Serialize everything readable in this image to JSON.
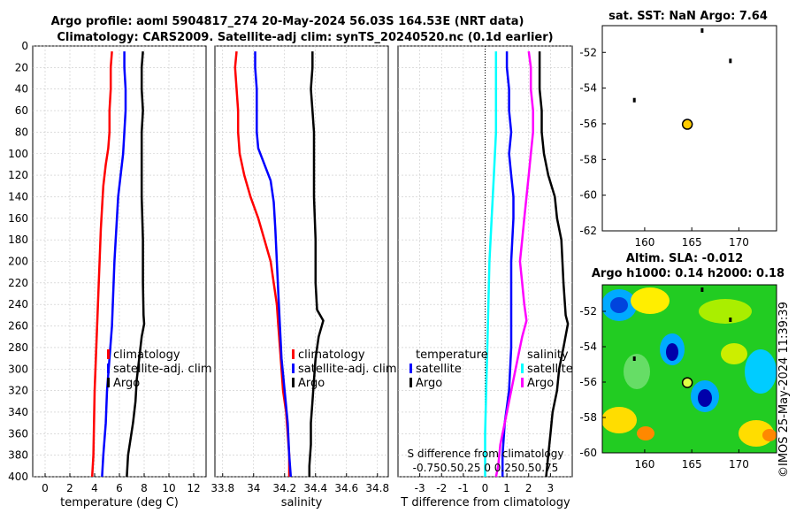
{
  "chart_data": [
    {
      "type": "line",
      "panel": "temperature",
      "title_line1": "Argo profile: aoml 5904817_274 20-May-2024 56.03S 164.53E (NRT data)",
      "title_line2": "Climatology: CARS2009. Satellite-adj clim: synTS_20240520.nc (0.1d earlier)",
      "xlabel": "temperature (deg C)",
      "ylabel": "",
      "xlim": [
        -1,
        13
      ],
      "ylim": [
        400,
        0
      ],
      "xticks": [
        0,
        2,
        4,
        6,
        8,
        10,
        12
      ],
      "xtick_labels": [
        "0",
        "2",
        "4",
        "6",
        "8",
        "10",
        "12"
      ],
      "yticks": [
        0,
        20,
        40,
        60,
        80,
        100,
        120,
        140,
        160,
        180,
        200,
        220,
        240,
        260,
        280,
        300,
        320,
        340,
        360,
        380,
        400
      ],
      "ytick_labels": [
        "0",
        "20",
        "40",
        "60",
        "80",
        "100",
        "120",
        "140",
        "160",
        "180",
        "200",
        "220",
        "240",
        "260",
        "280",
        "300",
        "320",
        "340",
        "360",
        "380",
        "400"
      ],
      "legend": [
        "climatology",
        "satellite-adj. clim",
        "Argo"
      ],
      "series": [
        {
          "name": "climatology",
          "color": "#ff0000",
          "points": [
            [
              5.4,
              5
            ],
            [
              5.3,
              20
            ],
            [
              5.3,
              40
            ],
            [
              5.2,
              60
            ],
            [
              5.2,
              80
            ],
            [
              5.1,
              95
            ],
            [
              4.9,
              110
            ],
            [
              4.7,
              130
            ],
            [
              4.6,
              150
            ],
            [
              4.5,
              170
            ],
            [
              4.4,
              200
            ],
            [
              4.3,
              230
            ],
            [
              4.2,
              260
            ],
            [
              4.1,
              290
            ],
            [
              4.0,
              320
            ],
            [
              3.95,
              350
            ],
            [
              3.9,
              380
            ],
            [
              3.8,
              400
            ]
          ]
        },
        {
          "name": "satellite-adj. clim",
          "color": "#0000ff",
          "points": [
            [
              6.4,
              5
            ],
            [
              6.4,
              20
            ],
            [
              6.5,
              40
            ],
            [
              6.5,
              60
            ],
            [
              6.4,
              80
            ],
            [
              6.3,
              100
            ],
            [
              6.1,
              120
            ],
            [
              5.9,
              140
            ],
            [
              5.8,
              160
            ],
            [
              5.7,
              180
            ],
            [
              5.6,
              200
            ],
            [
              5.5,
              230
            ],
            [
              5.4,
              260
            ],
            [
              5.2,
              290
            ],
            [
              5.0,
              320
            ],
            [
              4.9,
              350
            ],
            [
              4.7,
              380
            ],
            [
              4.6,
              400
            ]
          ]
        },
        {
          "name": "Argo",
          "color": "#000000",
          "points": [
            [
              7.9,
              5
            ],
            [
              7.8,
              20
            ],
            [
              7.8,
              40
            ],
            [
              7.9,
              60
            ],
            [
              7.8,
              80
            ],
            [
              7.8,
              100
            ],
            [
              7.8,
              140
            ],
            [
              7.9,
              180
            ],
            [
              7.9,
              220
            ],
            [
              7.95,
              250
            ],
            [
              8.0,
              258
            ],
            [
              7.8,
              270
            ],
            [
              7.6,
              290
            ],
            [
              7.4,
              310
            ],
            [
              7.3,
              330
            ],
            [
              7.1,
              350
            ],
            [
              6.9,
              365
            ],
            [
              6.7,
              380
            ],
            [
              6.6,
              400
            ]
          ]
        }
      ]
    },
    {
      "type": "line",
      "panel": "salinity",
      "xlabel": "salinity",
      "xlim": [
        33.75,
        34.87
      ],
      "ylim": [
        400,
        0
      ],
      "xticks": [
        33.8,
        34,
        34.2,
        34.4,
        34.6,
        34.8
      ],
      "xtick_labels": [
        "33.8",
        "34",
        "34.2",
        "34.4",
        "34.6",
        "34.8"
      ],
      "legend": [
        "climatology",
        "satellite-adj. clim",
        "Argo"
      ],
      "series": [
        {
          "name": "climatology",
          "color": "#ff0000",
          "points": [
            [
              33.89,
              5
            ],
            [
              33.88,
              20
            ],
            [
              33.89,
              40
            ],
            [
              33.9,
              60
            ],
            [
              33.9,
              80
            ],
            [
              33.91,
              100
            ],
            [
              33.94,
              120
            ],
            [
              33.98,
              140
            ],
            [
              34.03,
              160
            ],
            [
              34.07,
              180
            ],
            [
              34.11,
              200
            ],
            [
              34.13,
              220
            ],
            [
              34.15,
              240
            ],
            [
              34.16,
              260
            ],
            [
              34.17,
              280
            ],
            [
              34.18,
              300
            ],
            [
              34.19,
              320
            ],
            [
              34.21,
              340
            ],
            [
              34.22,
              360
            ],
            [
              34.23,
              380
            ],
            [
              34.23,
              400
            ]
          ]
        },
        {
          "name": "satellite-adj. clim",
          "color": "#0000ff",
          "points": [
            [
              34.01,
              5
            ],
            [
              34.01,
              20
            ],
            [
              34.02,
              40
            ],
            [
              34.02,
              60
            ],
            [
              34.02,
              80
            ],
            [
              34.03,
              95
            ],
            [
              34.07,
              110
            ],
            [
              34.11,
              125
            ],
            [
              34.13,
              145
            ],
            [
              34.14,
              170
            ],
            [
              34.15,
              200
            ],
            [
              34.16,
              230
            ],
            [
              34.17,
              260
            ],
            [
              34.18,
              290
            ],
            [
              34.2,
              320
            ],
            [
              34.22,
              350
            ],
            [
              34.23,
              380
            ],
            [
              34.24,
              400
            ]
          ]
        },
        {
          "name": "Argo",
          "color": "#000000",
          "points": [
            [
              34.38,
              5
            ],
            [
              34.38,
              20
            ],
            [
              34.37,
              40
            ],
            [
              34.38,
              60
            ],
            [
              34.39,
              80
            ],
            [
              34.39,
              100
            ],
            [
              34.39,
              140
            ],
            [
              34.4,
              180
            ],
            [
              34.4,
              220
            ],
            [
              34.41,
              245
            ],
            [
              34.45,
              255
            ],
            [
              34.42,
              270
            ],
            [
              34.4,
              290
            ],
            [
              34.39,
              310
            ],
            [
              34.38,
              330
            ],
            [
              34.37,
              350
            ],
            [
              34.37,
              370
            ],
            [
              34.36,
              390
            ],
            [
              34.36,
              400
            ]
          ]
        }
      ]
    },
    {
      "type": "line",
      "panel": "difference",
      "xlabel": "T difference from climatology",
      "xlim": [
        -4,
        4
      ],
      "ylim": [
        400,
        0
      ],
      "xticks": [
        -3,
        -2,
        -1,
        0,
        1,
        2,
        3
      ],
      "xtick_labels": [
        "-3",
        "-2",
        "-1",
        "0",
        "1",
        "2",
        "3"
      ],
      "top_annotation_line1": "S difference from climatology",
      "top_annotation_line2": "-0.750.50.25  0  0.250.50.75",
      "legend_temperature_title": "temperature",
      "legend_temperature": [
        "satellite",
        "Argo"
      ],
      "legend_salinity_title": "salinity",
      "legend_salinity": [
        "satellite",
        "Argo"
      ],
      "series": [
        {
          "name": "temperature satellite",
          "color": "#0000ff",
          "points": [
            [
              1.0,
              5
            ],
            [
              1.0,
              20
            ],
            [
              1.1,
              40
            ],
            [
              1.1,
              60
            ],
            [
              1.2,
              80
            ],
            [
              1.1,
              100
            ],
            [
              1.2,
              120
            ],
            [
              1.3,
              140
            ],
            [
              1.3,
              160
            ],
            [
              1.2,
              200
            ],
            [
              1.2,
              240
            ],
            [
              1.2,
              280
            ],
            [
              1.1,
              320
            ],
            [
              0.9,
              350
            ],
            [
              0.8,
              380
            ],
            [
              0.8,
              400
            ]
          ]
        },
        {
          "name": "temperature Argo",
          "color": "#000000",
          "points": [
            [
              2.5,
              5
            ],
            [
              2.5,
              20
            ],
            [
              2.5,
              40
            ],
            [
              2.6,
              60
            ],
            [
              2.6,
              80
            ],
            [
              2.7,
              100
            ],
            [
              2.9,
              120
            ],
            [
              3.2,
              140
            ],
            [
              3.3,
              160
            ],
            [
              3.5,
              180
            ],
            [
              3.6,
              220
            ],
            [
              3.7,
              250
            ],
            [
              3.8,
              258
            ],
            [
              3.6,
              280
            ],
            [
              3.4,
              300
            ],
            [
              3.3,
              320
            ],
            [
              3.1,
              340
            ],
            [
              3.0,
              360
            ],
            [
              2.9,
              380
            ],
            [
              2.8,
              400
            ]
          ]
        },
        {
          "name": "salinity satellite",
          "color": "#00ffff",
          "points": [
            [
              0.5,
              5
            ],
            [
              0.5,
              40
            ],
            [
              0.5,
              80
            ],
            [
              0.4,
              120
            ],
            [
              0.3,
              160
            ],
            [
              0.2,
              200
            ],
            [
              0.15,
              240
            ],
            [
              0.1,
              280
            ],
            [
              0.05,
              320
            ],
            [
              0.0,
              360
            ],
            [
              0.0,
              400
            ]
          ]
        },
        {
          "name": "salinity Argo",
          "color": "#ff00ff",
          "points": [
            [
              2.0,
              5
            ],
            [
              2.1,
              20
            ],
            [
              2.1,
              40
            ],
            [
              2.2,
              60
            ],
            [
              2.2,
              80
            ],
            [
              2.1,
              100
            ],
            [
              2.0,
              120
            ],
            [
              1.9,
              140
            ],
            [
              1.8,
              160
            ],
            [
              1.7,
              180
            ],
            [
              1.6,
              200
            ],
            [
              1.7,
              220
            ],
            [
              1.8,
              240
            ],
            [
              1.9,
              255
            ],
            [
              1.7,
              270
            ],
            [
              1.5,
              290
            ],
            [
              1.3,
              310
            ],
            [
              1.1,
              330
            ],
            [
              0.9,
              350
            ],
            [
              0.7,
              370
            ],
            [
              0.6,
              390
            ],
            [
              0.5,
              400
            ]
          ]
        }
      ]
    },
    {
      "type": "scatter",
      "panel": "sst-map",
      "title": "sat. SST: NaN Argo: 7.64",
      "xlim": [
        155.5,
        174
      ],
      "ylim": [
        -62,
        -50.5
      ],
      "xticks": [
        160,
        165,
        170
      ],
      "xtick_labels": [
        "160",
        "165",
        "170"
      ],
      "yticks": [
        -52,
        -54,
        -56,
        -58,
        -60,
        -62
      ],
      "ytick_labels": [
        "-52",
        "-54",
        "-56",
        "-58",
        "-60",
        "-62"
      ],
      "profile": {
        "lon": 164.53,
        "lat": -56.03
      },
      "land": [
        [
          166.1,
          -50.8
        ],
        [
          169.1,
          -52.5
        ],
        [
          158.9,
          -54.7
        ]
      ]
    },
    {
      "type": "heatmap",
      "panel": "sla-map",
      "title_line1": "Altim. SLA: -0.012",
      "title_line2": "Argo h1000: 0.14 h2000: 0.18",
      "xlim": [
        155.5,
        174
      ],
      "ylim": [
        -60,
        -50.5
      ],
      "xticks": [
        160,
        165,
        170
      ],
      "xtick_labels": [
        "160",
        "165",
        "170"
      ],
      "yticks": [
        -52,
        -54,
        -56,
        -58,
        -60
      ],
      "ytick_labels": [
        "-52",
        "-54",
        "-56",
        "-58",
        "-60"
      ],
      "profile": {
        "lon": 164.53,
        "lat": -56.03
      },
      "land": [
        [
          166.1,
          -50.8
        ],
        [
          169.1,
          -52.5
        ],
        [
          158.9,
          -54.7
        ]
      ]
    }
  ],
  "watermark": "©IMOS 25-May-2024 11:39:39"
}
